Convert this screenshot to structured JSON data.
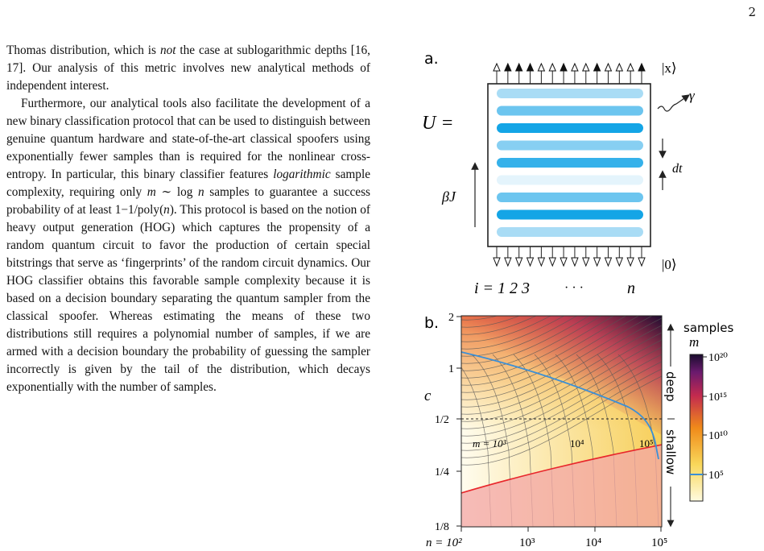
{
  "page_number": "2",
  "paragraphs": [
    {
      "segments": [
        {
          "t": "Thomas distribution, which is "
        },
        {
          "t": "not",
          "em": true
        },
        {
          "t": " the case at sublogarithmic depths [16, 17]. Our analysis of this metric involves new analytical methods of independent interest."
        }
      ]
    },
    {
      "indent": true,
      "segments": [
        {
          "t": "Furthermore, our analytical tools also facilitate the development of a new binary classification protocol that can be used to distinguish between genuine quantum hardware and state-of-the-art classical spoofers using exponentially fewer samples than is required for the nonlinear cross-entropy. In particular, this binary classifier features "
        },
        {
          "t": "logarithmic",
          "em": true
        },
        {
          "t": " sample complexity, requiring only "
        },
        {
          "t": "m",
          "em": true
        },
        {
          "t": " ∼ log "
        },
        {
          "t": "n",
          "em": true
        },
        {
          "t": " samples to guarantee a success probability of at least 1−1/poly("
        },
        {
          "t": "n",
          "em": true
        },
        {
          "t": "). This protocol is based on the notion of heavy output generation (HOG) which captures the propensity of a random quantum circuit to favor the production of certain special bitstrings that serve as ‘fingerprints’ of the random circuit dynamics. Our HOG classifier obtains this favorable sample complexity because it is based on a decision boundary separating the quantum sampler from the classical spoofer. Whereas estimating the means of these two distributions still requires a polynomial number of samples, if we are armed with a decision boundary the probability of guessing the sampler incorrectly is given by the tail of the distribution, which decays exponentially with the number of samples."
        }
      ]
    }
  ],
  "figure_a": {
    "panel_label": "a.",
    "lhs_label": "U =",
    "output_label": "|x⟩",
    "input_label": "|0⟩",
    "gamma_label": "γ",
    "dt_label": "dt",
    "time_label": "βJ",
    "qubit_index_label": "i = 1 2 3",
    "ellipsis": "· · ·",
    "last_index": "n",
    "output_pattern": [
      0,
      1,
      1,
      1,
      0,
      0,
      1,
      0,
      0,
      1,
      0,
      0,
      0,
      1
    ],
    "layer_colors": [
      "#a9dcf5",
      "#6cc5ef",
      "#14a5e6",
      "#87cff2",
      "#35b1ea",
      "#e4f4fc",
      "#6cc5ef",
      "#14a5e6",
      "#a9dcf5"
    ]
  },
  "figure_b": {
    "panel_label": "b.",
    "y_axis_label": "c",
    "y_ticks": [
      "2",
      "1",
      "1/2",
      "1/4",
      "1/8"
    ],
    "x_ticks": [
      "n = 10²",
      "10³",
      "10⁴",
      "10⁵"
    ],
    "contour_labels": [
      "m = 10³",
      "10⁴",
      "10⁵"
    ],
    "colorbar_title": "samples",
    "colorbar_var": "m",
    "colorbar_ticks": [
      "10²⁰",
      "10¹⁵",
      "10¹⁰",
      "10⁵"
    ],
    "deep_label": "deep",
    "shallow_label": "shallow",
    "accent_blue": "#3b8fd6",
    "boundary_red": "#e8262b"
  }
}
